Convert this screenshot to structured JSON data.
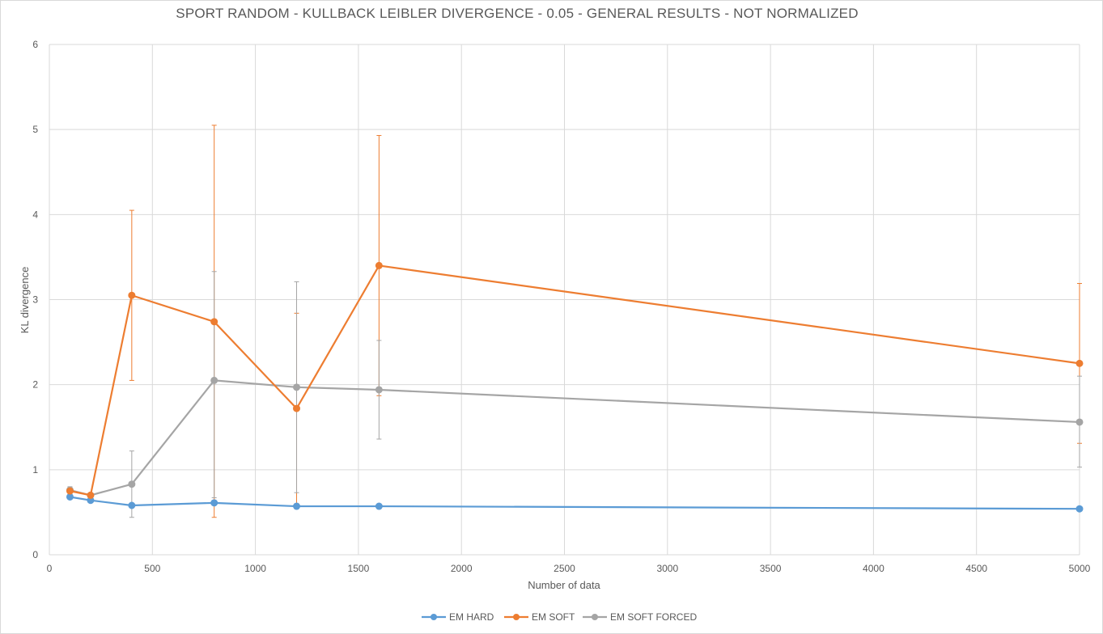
{
  "chart_data": {
    "type": "line",
    "title": "SPORT RANDOM - KULLBACK LEIBLER DIVERGENCE - 0.05 - GENERAL RESULTS - NOT NORMALIZED",
    "xlabel": "Number of data",
    "ylabel": "KL divergence",
    "xlim": [
      0,
      5000
    ],
    "ylim": [
      0,
      6
    ],
    "x_ticks": [
      0,
      500,
      1000,
      1500,
      2000,
      2500,
      3000,
      3500,
      4000,
      4500,
      5000
    ],
    "y_ticks": [
      0,
      1,
      2,
      3,
      4,
      5,
      6
    ],
    "grid": true,
    "legend_position": "bottom",
    "series": [
      {
        "name": "EM HARD",
        "color": "#5b9bd5",
        "x": [
          100,
          200,
          400,
          800,
          1200,
          1600,
          5000
        ],
        "y": [
          0.68,
          0.64,
          0.58,
          0.61,
          0.57,
          0.57,
          0.54
        ],
        "error_low": [
          0.68,
          0.64,
          0.58,
          0.61,
          0.57,
          0.57,
          0.54
        ],
        "error_high": [
          0.68,
          0.64,
          0.58,
          0.61,
          0.57,
          0.57,
          0.54
        ]
      },
      {
        "name": "EM SOFT",
        "color": "#ed7d31",
        "x": [
          100,
          200,
          400,
          800,
          1200,
          1600,
          5000
        ],
        "y": [
          0.75,
          0.7,
          3.05,
          2.74,
          1.72,
          3.4,
          2.25
        ],
        "error_low": [
          0.71,
          0.68,
          2.05,
          0.44,
          0.6,
          1.87,
          1.31
        ],
        "error_high": [
          0.79,
          0.72,
          4.05,
          5.05,
          2.84,
          4.93,
          3.19
        ]
      },
      {
        "name": "EM SOFT FORCED",
        "color": "#a5a5a5",
        "x": [
          100,
          200,
          400,
          800,
          1200,
          1600,
          5000
        ],
        "y": [
          0.76,
          0.7,
          0.83,
          2.05,
          1.97,
          1.94,
          1.56
        ],
        "error_low": [
          0.72,
          0.68,
          0.44,
          0.67,
          0.73,
          1.36,
          1.03
        ],
        "error_high": [
          0.8,
          0.72,
          1.22,
          3.33,
          3.21,
          2.52,
          2.1
        ]
      }
    ]
  }
}
